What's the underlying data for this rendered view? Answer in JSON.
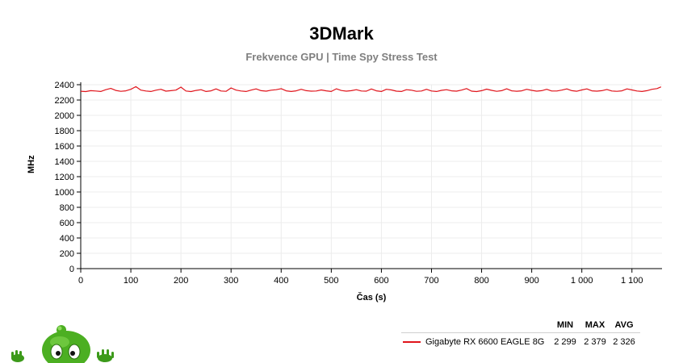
{
  "chart_data": {
    "type": "line",
    "title": "3DMark",
    "subtitle": "Frekvence GPU | Time Spy Stress Test",
    "xlabel": "Čas (s)",
    "ylabel": "MHz",
    "xlim": [
      0,
      1160
    ],
    "ylim": [
      0,
      2400
    ],
    "x_ticks": [
      0,
      100,
      200,
      300,
      400,
      500,
      600,
      700,
      800,
      900,
      1000,
      1100
    ],
    "x_tick_labels": [
      "0",
      "100",
      "200",
      "300",
      "400",
      "500",
      "600",
      "700",
      "800",
      "900",
      "1 000",
      "1 100"
    ],
    "y_ticks": [
      0,
      200,
      400,
      600,
      800,
      1000,
      1200,
      1400,
      1600,
      1800,
      2000,
      2200,
      2400
    ],
    "y_tick_labels": [
      "0",
      "200",
      "400",
      "600",
      "800",
      "1000",
      "1200",
      "1400",
      "1600",
      "1800",
      "2000",
      "2200",
      "2400"
    ],
    "grid": true,
    "legend_position": "bottom-right",
    "series": [
      {
        "name": "Gigabyte RX 6600 EAGLE 8G",
        "color": "#e0141b",
        "x": [
          0,
          10,
          20,
          30,
          40,
          50,
          60,
          70,
          80,
          90,
          100,
          110,
          120,
          130,
          140,
          150,
          160,
          170,
          180,
          190,
          200,
          210,
          220,
          230,
          240,
          250,
          260,
          270,
          280,
          290,
          300,
          310,
          320,
          330,
          340,
          350,
          360,
          370,
          380,
          390,
          400,
          410,
          420,
          430,
          440,
          450,
          460,
          470,
          480,
          490,
          500,
          510,
          520,
          530,
          540,
          550,
          560,
          570,
          580,
          590,
          600,
          610,
          620,
          630,
          640,
          650,
          660,
          670,
          680,
          690,
          700,
          710,
          720,
          730,
          740,
          750,
          760,
          770,
          780,
          790,
          800,
          810,
          820,
          830,
          840,
          850,
          860,
          870,
          880,
          890,
          900,
          910,
          920,
          930,
          940,
          950,
          960,
          970,
          980,
          990,
          1000,
          1010,
          1020,
          1030,
          1040,
          1050,
          1060,
          1070,
          1080,
          1090,
          1100,
          1110,
          1120,
          1130,
          1140,
          1150,
          1158
        ],
        "values": [
          2315,
          2310,
          2322,
          2318,
          2312,
          2335,
          2352,
          2325,
          2314,
          2320,
          2340,
          2375,
          2330,
          2318,
          2312,
          2328,
          2340,
          2316,
          2322,
          2330,
          2368,
          2318,
          2310,
          2325,
          2335,
          2312,
          2320,
          2345,
          2318,
          2314,
          2358,
          2330,
          2318,
          2312,
          2330,
          2345,
          2322,
          2316,
          2328,
          2335,
          2348,
          2320,
          2312,
          2320,
          2340,
          2322,
          2316,
          2318,
          2332,
          2320,
          2312,
          2346,
          2324,
          2316,
          2322,
          2335,
          2318,
          2316,
          2344,
          2320,
          2312,
          2340,
          2332,
          2316,
          2312,
          2335,
          2328,
          2314,
          2318,
          2340,
          2318,
          2312,
          2326,
          2335,
          2320,
          2316,
          2330,
          2350,
          2316,
          2310,
          2322,
          2342,
          2326,
          2314,
          2322,
          2346,
          2320,
          2315,
          2320,
          2340,
          2326,
          2316,
          2322,
          2340,
          2318,
          2318,
          2330,
          2345,
          2322,
          2315,
          2332,
          2345,
          2320,
          2316,
          2322,
          2338,
          2318,
          2314,
          2320,
          2345,
          2332,
          2318,
          2312,
          2322,
          2340,
          2350,
          2372
        ]
      }
    ],
    "stats_headers": [
      "MIN",
      "MAX",
      "AVG"
    ],
    "stats": [
      {
        "name": "Gigabyte RX 6600 EAGLE 8G",
        "min": "2 299",
        "max": "2 379",
        "avg": "2 326"
      }
    ]
  },
  "mascot": {
    "icon": "green-alien-mascot-icon"
  }
}
